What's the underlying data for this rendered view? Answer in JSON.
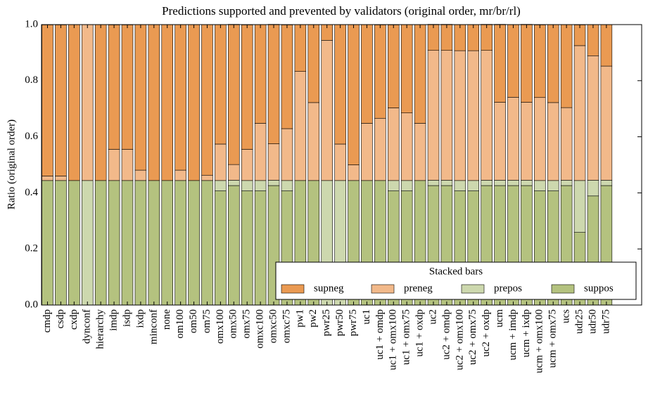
{
  "chart_data": {
    "type": "stacked_bar",
    "title": "Predictions supported and prevented by validators (original order, mr/br/rl)",
    "y_label": "Ratio (original order)",
    "categories": [
      "cmdp",
      "csdp",
      "cxdp",
      "dynconf",
      "hierarchy",
      "imdp",
      "isdp",
      "ixdp",
      "minconf",
      "none",
      "om100",
      "om50",
      "om75",
      "omx100",
      "omx50",
      "omx75",
      "omxc100",
      "omxc50",
      "omxc75",
      "pw1",
      "pw2",
      "pwr25",
      "pwr50",
      "pwr75",
      "uc1",
      "uc1 + omdp",
      "uc1 + omx100",
      "uc1 + omx75",
      "uc1 + oxdp",
      "uc2",
      "uc2 + omdp",
      "uc2 + omx100",
      "uc2 + omx75",
      "uc2 + oxdp",
      "ucm",
      "ucm + imdp",
      "ucm + ixdp",
      "ucm + omx100",
      "ucm + omx75",
      "ucs",
      "udr25",
      "udr50",
      "udr75"
    ],
    "series": [
      {
        "name": "supneg",
        "color": "#ea9a52",
        "values": [
          0.539,
          0.539,
          0.556,
          0,
          0.556,
          0.444,
          0.444,
          0.519,
          0.556,
          0.556,
          0.519,
          0.556,
          0.537,
          0.426,
          0.5,
          0.444,
          0.352,
          0.426,
          0.37,
          0.167,
          0.278,
          0.056,
          0.426,
          0.5,
          0.352,
          0.333,
          0.296,
          0.315,
          0.352,
          0.093,
          0.093,
          0.093,
          0.093,
          0.093,
          0.278,
          0.259,
          0.278,
          0.259,
          0.278,
          0.296,
          0.074,
          0.111,
          0.148
        ]
      },
      {
        "name": "preneg",
        "color": "#f2b98a",
        "values": [
          0.016,
          0.016,
          0,
          0.556,
          0,
          0.111,
          0.111,
          0.037,
          0,
          0,
          0.037,
          0,
          0.019,
          0.13,
          0.056,
          0.111,
          0.204,
          0.13,
          0.185,
          0.389,
          0.278,
          0.5,
          0.13,
          0.056,
          0.204,
          0.222,
          0.259,
          0.241,
          0.204,
          0.463,
          0.463,
          0.463,
          0.463,
          0.463,
          0.278,
          0.296,
          0.278,
          0.296,
          0.278,
          0.259,
          0.481,
          0.444,
          0.407
        ]
      },
      {
        "name": "prepos",
        "color": "#cdd8ae",
        "values": [
          0,
          0,
          0,
          0.444,
          0,
          0,
          0,
          0,
          0,
          0,
          0,
          0,
          0,
          0.037,
          0.019,
          0.037,
          0.037,
          0.019,
          0.037,
          0,
          0,
          0.444,
          0.444,
          0,
          0,
          0,
          0.037,
          0.037,
          0,
          0.019,
          0.019,
          0.037,
          0.037,
          0.019,
          0.019,
          0.019,
          0.019,
          0.037,
          0.037,
          0.019,
          0.185,
          0.056,
          0.019
        ]
      },
      {
        "name": "suppos",
        "color": "#b4c27f",
        "values": [
          0.444,
          0.444,
          0.444,
          0,
          0.444,
          0.444,
          0.444,
          0.444,
          0.444,
          0.444,
          0.444,
          0.444,
          0.444,
          0.407,
          0.426,
          0.407,
          0.407,
          0.426,
          0.407,
          0.444,
          0.444,
          0,
          0,
          0.444,
          0.444,
          0.444,
          0.407,
          0.407,
          0.444,
          0.426,
          0.426,
          0.407,
          0.407,
          0.426,
          0.426,
          0.426,
          0.426,
          0.407,
          0.407,
          0.426,
          0.259,
          0.389,
          0.426
        ]
      }
    ],
    "ylim": [
      0,
      1
    ],
    "yticks": [
      {
        "value": 0,
        "label": "0.0"
      },
      0.2,
      0.4,
      0.6,
      0.8,
      {
        "value": 1,
        "label": "1.0"
      }
    ],
    "legend_title": "Stacked bars",
    "legend": "lower right"
  }
}
